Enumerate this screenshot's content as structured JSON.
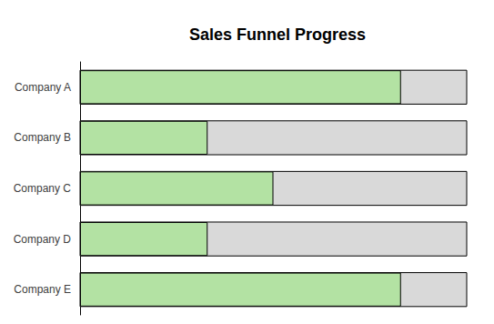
{
  "chart_data": {
    "type": "bar",
    "title": "Sales Funnel Progress",
    "orientation": "horizontal",
    "categories": [
      "Company A",
      "Company B",
      "Company C",
      "Company D",
      "Company E"
    ],
    "values": [
      83,
      33,
      50,
      33,
      83
    ],
    "color": "#b3e2a3",
    "xlim": [
      0,
      100
    ],
    "tick_labels": "y"
  }
}
